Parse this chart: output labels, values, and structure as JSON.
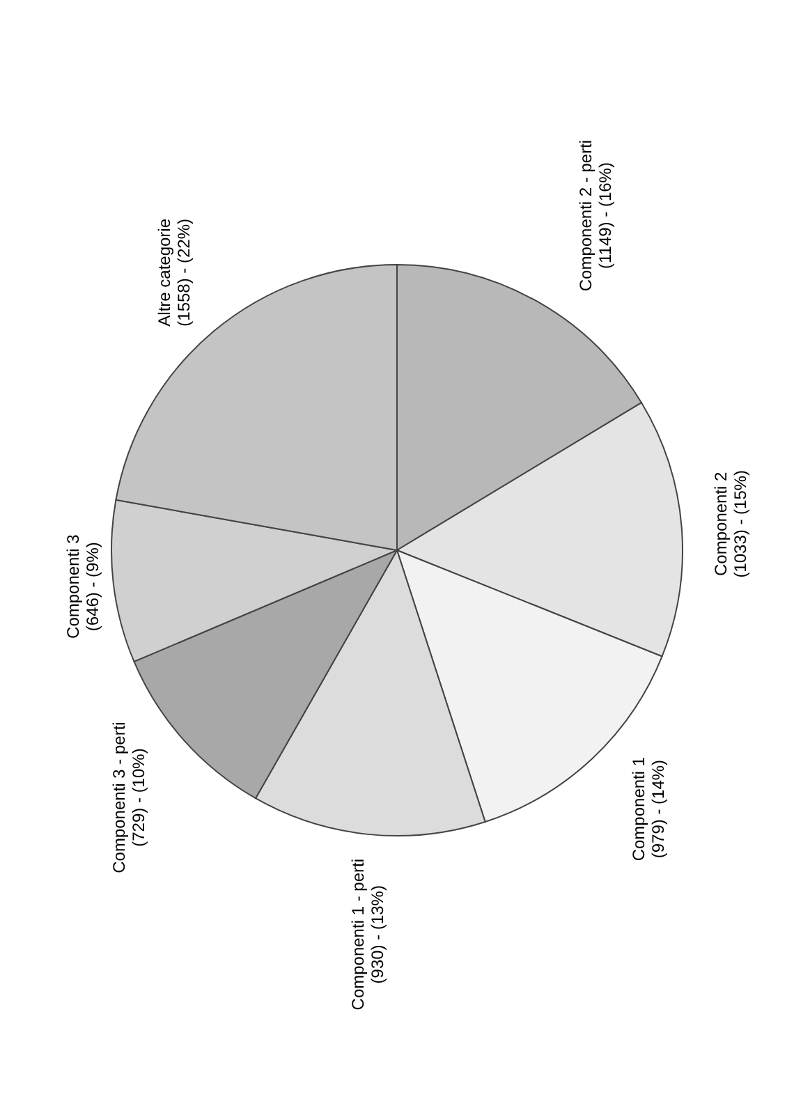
{
  "chart_data": {
    "type": "pie",
    "categories": [
      "Componenti 2 - perti",
      "Componenti 2",
      "Componenti 1",
      "Componenti 1 - perti",
      "Componenti 3 - perti",
      "Componenti 3",
      "Altre categorie"
    ],
    "values": [
      1149,
      1033,
      979,
      930,
      729,
      646,
      1558
    ],
    "value_labels": [
      "(1149) - (16%)",
      "(1033) - (15%)",
      "(979) - (14%)",
      "(930) - (13%)",
      "(729) - (10%)",
      "(646) - (9%)",
      "(1558) - (22%)"
    ],
    "colors": [
      "#b8b8b8",
      "#e4e4e4",
      "#f2f2f2",
      "#dcdcdc",
      "#a8a8a8",
      "#d0d0d0",
      "#c4c4c4"
    ]
  }
}
